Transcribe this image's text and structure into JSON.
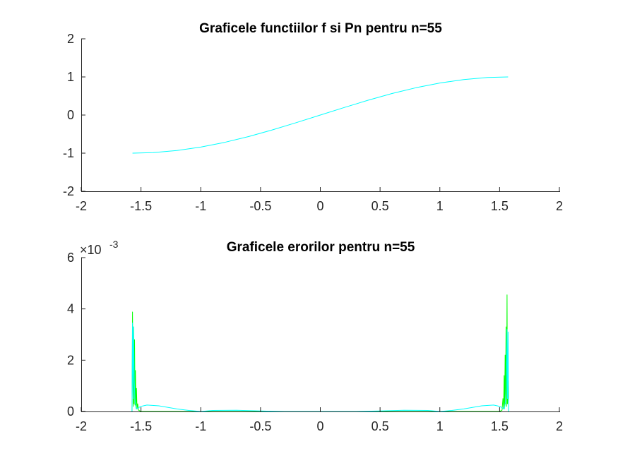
{
  "chart_data": [
    {
      "type": "line",
      "title": "Graficele functiilor f si Pn pentru n=55",
      "xlabel": "",
      "ylabel": "",
      "xlim": [
        -2,
        2
      ],
      "ylim": [
        -2,
        2
      ],
      "x_ticks": [
        "-2",
        "-1.5",
        "-1",
        "-0.5",
        "0",
        "0.5",
        "1",
        "1.5",
        "2"
      ],
      "y_ticks": [
        "-2",
        "-1",
        "0",
        "1",
        "2"
      ],
      "grid": false,
      "series": [
        {
          "color": "#00ffff",
          "x": [
            -1.5708,
            -1.4,
            -1.2,
            -1.0,
            -0.8,
            -0.6,
            -0.4,
            -0.2,
            0.0,
            0.2,
            0.4,
            0.6,
            0.8,
            1.0,
            1.2,
            1.4,
            1.5708
          ],
          "y": [
            -1.0,
            -0.985,
            -0.932,
            -0.841,
            -0.717,
            -0.565,
            -0.389,
            -0.199,
            0.0,
            0.199,
            0.389,
            0.565,
            0.717,
            0.841,
            0.932,
            0.985,
            1.0
          ]
        }
      ]
    },
    {
      "type": "line",
      "title": "Graficele erorilor pentru n=55",
      "xlabel": "",
      "ylabel": "",
      "xlim": [
        -2,
        2
      ],
      "ylim": [
        0,
        6
      ],
      "y_exponent_base": "×10",
      "y_exponent_power": "-3",
      "x_ticks": [
        "-2",
        "-1.5",
        "-1",
        "-0.5",
        "0",
        "0.5",
        "1",
        "1.5",
        "2"
      ],
      "y_ticks": [
        "0",
        "2",
        "4",
        "6"
      ],
      "grid": false,
      "series": [
        {
          "color": "#00ff00",
          "x": [
            -1.575,
            -1.571,
            -1.566,
            -1.562,
            -1.558,
            -1.554,
            -1.55,
            -1.546,
            -1.542,
            -1.538,
            -1.533,
            -1.528,
            -1.52,
            -1.5,
            1.5,
            1.52,
            1.528,
            1.533,
            1.538,
            1.542,
            1.546,
            1.55,
            1.554,
            1.558,
            1.562,
            1.566,
            1.571,
            1.575
          ],
          "y": [
            0.0,
            3.88,
            0.2,
            3.3,
            0.3,
            2.8,
            0.25,
            1.6,
            0.15,
            0.9,
            0.1,
            0.3,
            0.05,
            0.0,
            0.0,
            0.05,
            0.5,
            0.1,
            1.4,
            0.2,
            2.2,
            0.3,
            3.3,
            0.2,
            4.55,
            0.3,
            1.2,
            0.0
          ]
        },
        {
          "color": "#00ffff",
          "x": [
            -1.575,
            -1.571,
            -1.566,
            -1.562,
            -1.556,
            -1.55,
            -1.54,
            -1.5,
            -1.45,
            -1.35,
            -1.2,
            -1.1,
            -1.0,
            -0.9,
            -0.7,
            -0.5,
            -0.3,
            0.0,
            0.3,
            0.5,
            0.7,
            0.9,
            1.0,
            1.1,
            1.2,
            1.35,
            1.45,
            1.5,
            1.54,
            1.55,
            1.556,
            1.562,
            1.566,
            1.571,
            1.575
          ],
          "y": [
            0.0,
            3.45,
            0.5,
            3.3,
            1.2,
            0.4,
            0.1,
            0.2,
            0.25,
            0.22,
            0.1,
            0.04,
            0.0,
            0.04,
            0.05,
            0.02,
            0.0,
            0.0,
            0.0,
            0.02,
            0.05,
            0.04,
            0.0,
            0.04,
            0.1,
            0.22,
            0.25,
            0.2,
            0.1,
            0.4,
            1.2,
            3.2,
            0.5,
            3.1,
            0.0
          ]
        }
      ]
    }
  ]
}
